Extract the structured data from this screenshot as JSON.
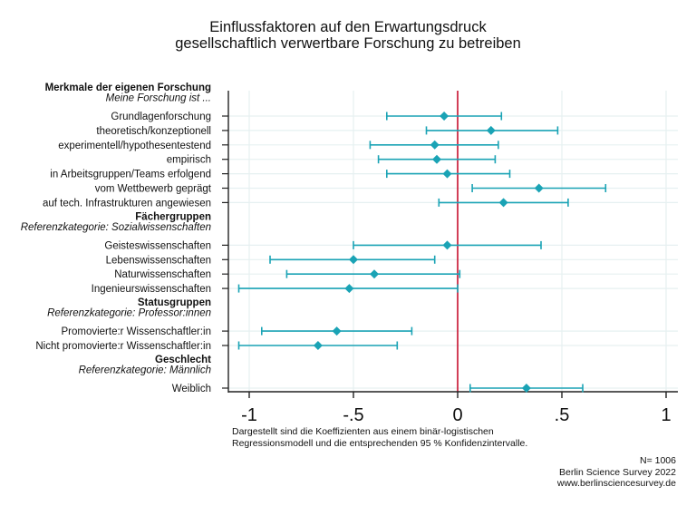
{
  "chart_data": {
    "type": "scatter",
    "subtype": "coefficient-plot",
    "title": [
      "Einflussfaktoren auf den Erwartungsdruck",
      "gesellschaftlich verwertbare Forschung zu betreiben"
    ],
    "xlabel": "",
    "ylabel": "",
    "xlim": [
      -1.1,
      1.03
    ],
    "xticks": [
      -1,
      -0.5,
      0,
      0.5,
      1
    ],
    "xtick_labels": [
      "-1",
      "-.5",
      "0",
      ".5",
      "1"
    ],
    "reference_line": 0,
    "grid": true,
    "colors": {
      "point": "#1aa3b5",
      "ci": "#1aa3b5",
      "refline": "#c8102e",
      "grid": "#e6f0f1",
      "axis": "#222222"
    },
    "groups": [
      {
        "header": "Merkmale der eigenen Forschung",
        "subheader": "Meine Forschung ist ...",
        "items": [
          {
            "label": "Grundlagenforschung",
            "coef": -0.065,
            "lower": -0.34,
            "upper": 0.21
          },
          {
            "label": "theoretisch/konzeptionell",
            "coef": 0.16,
            "lower": -0.15,
            "upper": 0.48
          },
          {
            "label": "experimentell/hypothesentestend",
            "coef": -0.11,
            "lower": -0.42,
            "upper": 0.195
          },
          {
            "label": "empirisch",
            "coef": -0.1,
            "lower": -0.38,
            "upper": 0.18
          },
          {
            "label": "in Arbeitsgruppen/Teams erfolgend",
            "coef": -0.05,
            "lower": -0.34,
            "upper": 0.25
          },
          {
            "label": "vom Wettbewerb geprägt",
            "coef": 0.39,
            "lower": 0.07,
            "upper": 0.71
          },
          {
            "label": "auf tech. Infrastrukturen angewiesen",
            "coef": 0.22,
            "lower": -0.09,
            "upper": 0.53
          }
        ]
      },
      {
        "header": "Fächergruppen",
        "subheader": "Referenzkategorie: Sozialwissenschaften",
        "items": [
          {
            "label": "Geisteswissenschaften",
            "coef": -0.05,
            "lower": -0.5,
            "upper": 0.4
          },
          {
            "label": "Lebenswissenschaften",
            "coef": -0.5,
            "lower": -0.9,
            "upper": -0.11
          },
          {
            "label": "Naturwissenschaften",
            "coef": -0.4,
            "lower": -0.82,
            "upper": 0.01
          },
          {
            "label": "Ingenieurswissenschaften",
            "coef": -0.52,
            "lower": -1.05,
            "upper": 0.0
          }
        ]
      },
      {
        "header": "Statusgruppen",
        "subheader": "Referenzkategorie: Professor:innen",
        "items": [
          {
            "label": "Promovierte:r Wissenschaftler:in",
            "coef": -0.58,
            "lower": -0.94,
            "upper": -0.22
          },
          {
            "label": "Nicht promovierte:r Wissenschaftler:in",
            "coef": -0.67,
            "lower": -1.05,
            "upper": -0.29
          }
        ]
      },
      {
        "header": "Geschlecht",
        "subheader": "Referenzkategorie: Männlich",
        "items": [
          {
            "label": "Weiblich",
            "coef": 0.33,
            "lower": 0.06,
            "upper": 0.6
          }
        ]
      }
    ],
    "note": [
      "Dargestellt sind die Koeffizienten aus einem binär-logistischen",
      "Regressionsmodell und die entsprechenden 95 % Konfidenzintervalle."
    ],
    "source": [
      "N= 1006",
      "Berlin Science Survey 2022",
      "www.berlinsciencesurvey.de"
    ]
  }
}
